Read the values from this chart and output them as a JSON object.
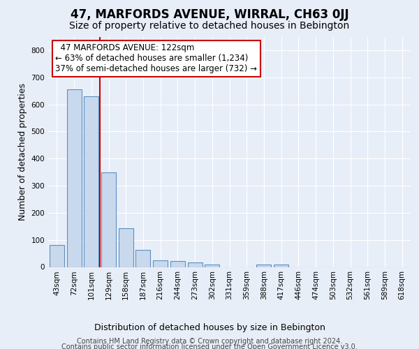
{
  "title": "47, MARFORDS AVENUE, WIRRAL, CH63 0JJ",
  "subtitle": "Size of property relative to detached houses in Bebington",
  "xlabel": "Distribution of detached houses by size in Bebington",
  "ylabel": "Number of detached properties",
  "footer_line1": "Contains HM Land Registry data © Crown copyright and database right 2024.",
  "footer_line2": "Contains public sector information licensed under the Open Government Licence v3.0.",
  "categories": [
    "43sqm",
    "72sqm",
    "101sqm",
    "129sqm",
    "158sqm",
    "187sqm",
    "216sqm",
    "244sqm",
    "273sqm",
    "302sqm",
    "331sqm",
    "359sqm",
    "388sqm",
    "417sqm",
    "446sqm",
    "474sqm",
    "503sqm",
    "532sqm",
    "561sqm",
    "589sqm",
    "618sqm"
  ],
  "bar_values": [
    82,
    655,
    630,
    350,
    143,
    62,
    25,
    22,
    18,
    9,
    0,
    0,
    8,
    8,
    0,
    0,
    0,
    0,
    0,
    0,
    0
  ],
  "bar_color": "#c9d9ed",
  "bar_edge_color": "#5a8fc2",
  "bar_edge_width": 0.8,
  "property_line_color": "#cc0000",
  "annotation_text": "  47 MARFORDS AVENUE: 122sqm\n← 63% of detached houses are smaller (1,234)\n37% of semi-detached houses are larger (732) →",
  "annotation_box_color": "white",
  "annotation_box_edge_color": "#cc0000",
  "ylim": [
    0,
    850
  ],
  "yticks": [
    0,
    100,
    200,
    300,
    400,
    500,
    600,
    700,
    800
  ],
  "bg_color": "#e8eef8",
  "plot_bg_color": "#e8eef8",
  "grid_color": "white",
  "title_fontsize": 12,
  "subtitle_fontsize": 10,
  "axis_label_fontsize": 9,
  "tick_fontsize": 7.5,
  "annotation_fontsize": 8.5,
  "footer_fontsize": 7
}
